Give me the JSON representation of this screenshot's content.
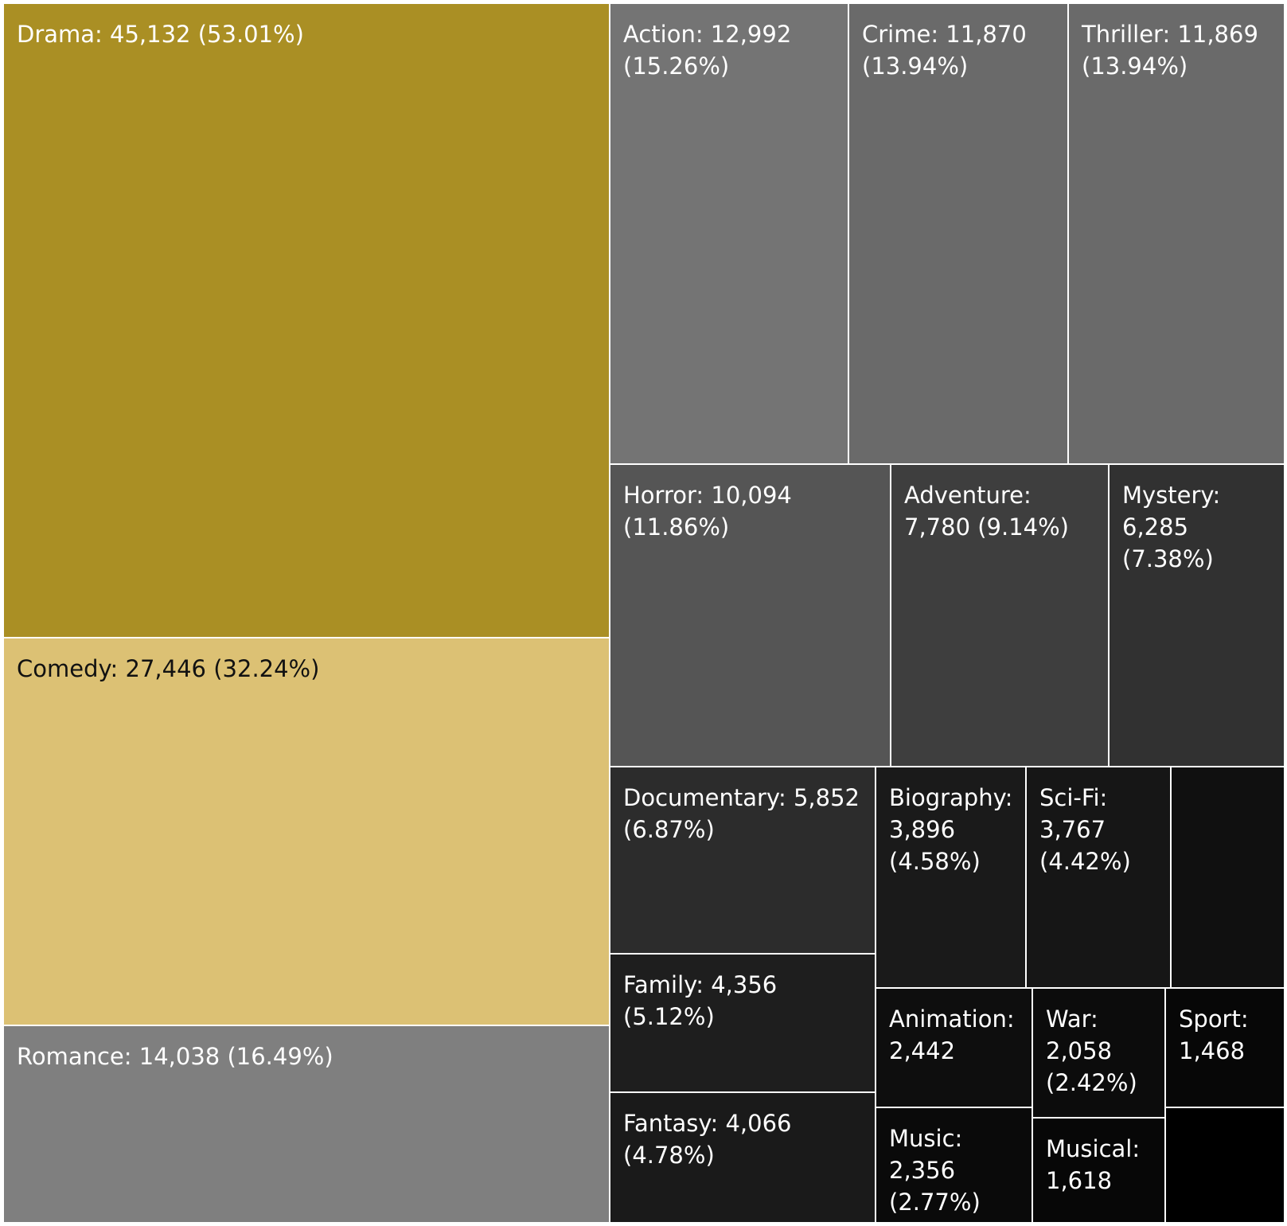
{
  "chart_data": {
    "type": "treemap",
    "title": "",
    "items": [
      {
        "name": "Drama",
        "label": "Drama: 45,132 (53.01%)",
        "value": 45132,
        "percent": 53.01,
        "color": "#AA8F24",
        "text_color": "#FFFFFF"
      },
      {
        "name": "Comedy",
        "label": "Comedy: 27,446 (32.24%)",
        "value": 27446,
        "percent": 32.24,
        "color": "#DCC174",
        "text_color": "#111111"
      },
      {
        "name": "Romance",
        "label": "Romance: 14,038 (16.49%)",
        "value": 14038,
        "percent": 16.49,
        "color": "#7F7F7F",
        "text_color": "#FFFFFF"
      },
      {
        "name": "Action",
        "label": "Action: 12,992\n(15.26%)",
        "value": 12992,
        "percent": 15.26,
        "color": "#747474",
        "text_color": "#FFFFFF"
      },
      {
        "name": "Crime",
        "label": "Crime: 11,870\n(13.94%)",
        "value": 11870,
        "percent": 13.94,
        "color": "#6A6A6A",
        "text_color": "#FFFFFF"
      },
      {
        "name": "Thriller",
        "label": "Thriller: 11,869\n(13.94%)",
        "value": 11869,
        "percent": 13.94,
        "color": "#6A6A6A",
        "text_color": "#FFFFFF"
      },
      {
        "name": "Horror",
        "label": "Horror: 10,094\n(11.86%)",
        "value": 10094,
        "percent": 11.86,
        "color": "#555555",
        "text_color": "#FFFFFF"
      },
      {
        "name": "Adventure",
        "label": "Adventure:\n7,780 (9.14%)",
        "value": 7780,
        "percent": 9.14,
        "color": "#3E3E3E",
        "text_color": "#FFFFFF"
      },
      {
        "name": "Mystery",
        "label": "Mystery:\n6,285\n(7.38%)",
        "value": 6285,
        "percent": 7.38,
        "color": "#313131",
        "text_color": "#FFFFFF"
      },
      {
        "name": "Documentary",
        "label": "Documentary: 5,852\n(6.87%)",
        "value": 5852,
        "percent": 6.87,
        "color": "#2C2C2C",
        "text_color": "#FFFFFF"
      },
      {
        "name": "Family",
        "label": "Family: 4,356\n(5.12%)",
        "value": 4356,
        "percent": 5.12,
        "color": "#1E1E1E",
        "text_color": "#FFFFFF"
      },
      {
        "name": "Fantasy",
        "label": "Fantasy: 4,066\n(4.78%)",
        "value": 4066,
        "percent": 4.78,
        "color": "#1A1A1A",
        "text_color": "#FFFFFF"
      },
      {
        "name": "Biography",
        "label": "Biography:\n3,896\n(4.58%)",
        "value": 3896,
        "percent": 4.58,
        "color": "#1A1A1A",
        "text_color": "#FFFFFF"
      },
      {
        "name": "Sci-Fi",
        "label": "Sci-Fi:\n3,767\n(4.42%)",
        "value": 3767,
        "percent": 4.42,
        "color": "#161616",
        "text_color": "#FFFFFF"
      },
      {
        "name": "",
        "label": "",
        "value": null,
        "percent": null,
        "color": "#101010",
        "text_color": "#FFFFFF"
      },
      {
        "name": "Animation",
        "label": "Animation:\n2,442",
        "value": 2442,
        "percent": null,
        "color": "#0E0E0E",
        "text_color": "#FFFFFF"
      },
      {
        "name": "War",
        "label": "War:\n2,058\n(2.42%)",
        "value": 2058,
        "percent": 2.42,
        "color": "#0C0C0C",
        "text_color": "#FFFFFF"
      },
      {
        "name": "Sport",
        "label": "Sport:\n1,468",
        "value": 1468,
        "percent": null,
        "color": "#070707",
        "text_color": "#FFFFFF"
      },
      {
        "name": "Music",
        "label": "Music: 2,356\n(2.77%)",
        "value": 2356,
        "percent": 2.77,
        "color": "#0A0A0A",
        "text_color": "#FFFFFF"
      },
      {
        "name": "Musical",
        "label": "Musical:\n1,618",
        "value": 1618,
        "percent": null,
        "color": "#070707",
        "text_color": "#FFFFFF"
      },
      {
        "name": "",
        "label": "",
        "value": null,
        "percent": null,
        "color": "#000000",
        "text_color": "#FFFFFF"
      }
    ]
  }
}
